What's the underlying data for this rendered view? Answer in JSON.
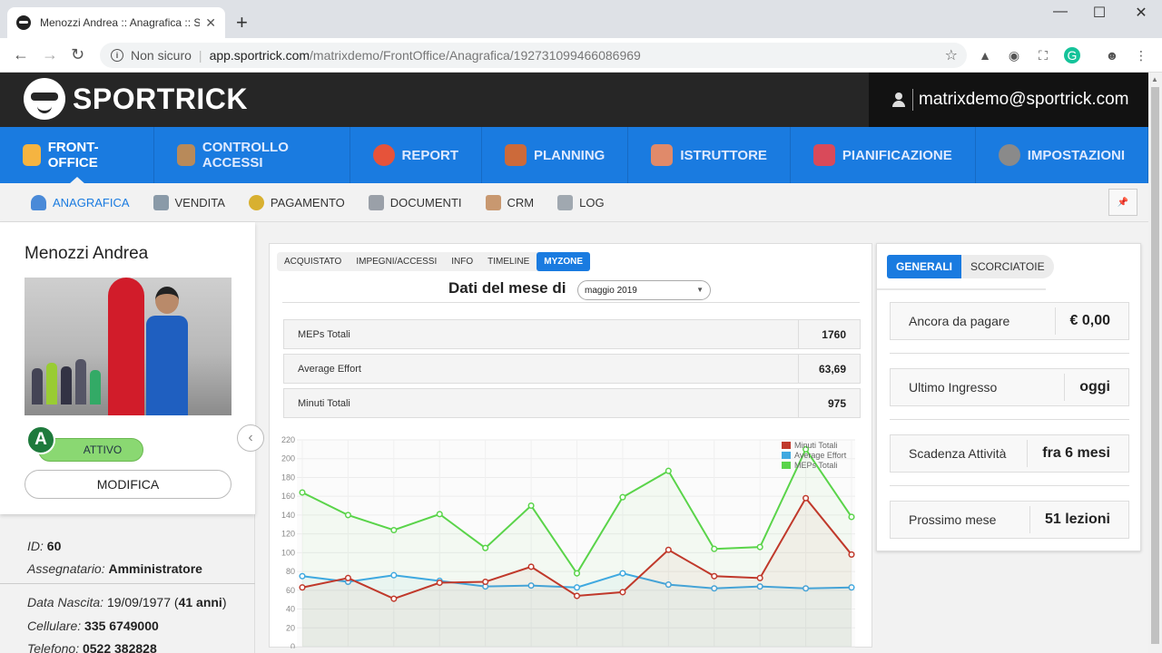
{
  "browser": {
    "tab_title": "Menozzi Andrea :: Anagrafica :: Sp",
    "new_tab": "+",
    "minimize": "—",
    "maximize": "☐",
    "close": "✕",
    "security": "Non sicuro",
    "url_host": "app.sportrick.com",
    "url_path": "/matrixdemo/FrontOffice/Anagrafica/192731099466086969"
  },
  "header": {
    "brand": "SPORTRICK",
    "user_email": "matrixdemo@sportrick.com"
  },
  "main_nav": [
    {
      "label": "FRONT-OFFICE",
      "color": "#f5b441"
    },
    {
      "label": "CONTROLLO ACCESSI",
      "color": "#b88a5a"
    },
    {
      "label": "REPORT",
      "color": "#e6533a"
    },
    {
      "label": "PLANNING",
      "color": "#cc6a3a"
    },
    {
      "label": "ISTRUTTORE",
      "color": "#e08a6a"
    },
    {
      "label": "PIANIFICAZIONE",
      "color": "#d94a5a"
    },
    {
      "label": "IMPOSTAZIONI",
      "color": "#8a8a8a"
    }
  ],
  "sub_nav": [
    {
      "label": "ANAGRAFICA",
      "color": "#4a8ad8"
    },
    {
      "label": "VENDITA",
      "color": "#8a9aa8"
    },
    {
      "label": "PAGAMENTO",
      "color": "#d8b030"
    },
    {
      "label": "DOCUMENTI",
      "color": "#9aa0a8"
    },
    {
      "label": "CRM",
      "color": "#c89870"
    },
    {
      "label": "LOG",
      "color": "#a0a8b0"
    }
  ],
  "pin_icon": "📌",
  "member": {
    "name": "Menozzi Andrea",
    "level": "A",
    "status": "ATTIVO",
    "edit_label": "MODIFICA",
    "id_label": "ID:",
    "id_value": "60",
    "assignee_label": "Assegnatario:",
    "assignee_value": "Amministratore",
    "birth_label": "Data Nascita:",
    "birth_value": "19/09/1977",
    "age_value": "41 anni",
    "mobile_label": "Cellulare:",
    "mobile_value": "335 6749000",
    "phone_label": "Telefono:",
    "phone_value": "0522 382828"
  },
  "center": {
    "tabs": [
      "ACQUISTATO",
      "IMPEGNI/ACCESSI",
      "INFO",
      "TIMELINE",
      "MYZONE"
    ],
    "active_tab": 4,
    "month_label": "Dati del mese di",
    "month_value": "maggio 2019",
    "stats": [
      {
        "label": "MEPs Totali",
        "value": "1760"
      },
      {
        "label": "Average Effort",
        "value": "63,69"
      },
      {
        "label": "Minuti Totali",
        "value": "975"
      }
    ]
  },
  "chart_data": {
    "type": "line",
    "y_ticks": [
      "220",
      "200",
      "180",
      "160",
      "140",
      "120",
      "100",
      "80",
      "60",
      "40",
      "20",
      "0"
    ],
    "ylim": [
      0,
      220
    ],
    "legend_position": "top-right",
    "series": [
      {
        "name": "Minuti Totali",
        "color": "#c0392b",
        "values": [
          63,
          73,
          51,
          68,
          69,
          85,
          54,
          58,
          103,
          75,
          73,
          158,
          98
        ]
      },
      {
        "name": "Average Effort",
        "color": "#3fa9e0",
        "values": [
          75,
          69,
          76,
          70,
          64,
          65,
          63,
          78,
          66,
          62,
          64,
          62,
          63
        ]
      },
      {
        "name": "MEPs Totali",
        "color": "#5ad44a",
        "values": [
          164,
          140,
          124,
          141,
          105,
          150,
          78,
          159,
          187,
          104,
          106,
          210,
          138
        ]
      }
    ]
  },
  "right": {
    "tabs": [
      "GENERALI",
      "SCORCIATOIE"
    ],
    "items": [
      {
        "label": "Ancora da pagare",
        "value": "€ 0,00"
      },
      {
        "label": "Ultimo Ingresso",
        "value": "oggi"
      },
      {
        "label": "Scadenza Attività",
        "value": "fra 6 mesi"
      },
      {
        "label": "Prossimo mese",
        "value": "51 lezioni"
      }
    ]
  }
}
